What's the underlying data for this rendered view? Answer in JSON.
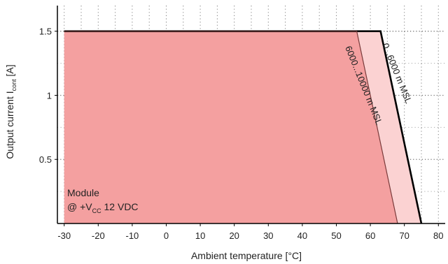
{
  "chart_data": {
    "type": "area",
    "xlabel": "Ambient temperature [°C]",
    "ylabel_main": "Output current I",
    "ylabel_sub": "cont",
    "ylabel_unit": " [A]",
    "xlim": [
      -32,
      82
    ],
    "ylim": [
      0,
      1.7
    ],
    "xticks": [
      -30,
      -20,
      -10,
      0,
      10,
      20,
      30,
      40,
      50,
      60,
      70,
      80
    ],
    "yticks": [
      0.5,
      1,
      1.5
    ],
    "ytick_labels": [
      "0.5",
      "1",
      "1.5"
    ],
    "grid": true,
    "series": [
      {
        "name": "0...6000 m MSL",
        "x": [
          -30,
          63,
          75
        ],
        "y": [
          1.5,
          1.5,
          0
        ],
        "fill": "#fbd2d2",
        "line": "#000000"
      },
      {
        "name": "6000...10000 m MSL",
        "x": [
          -30,
          56,
          68
        ],
        "y": [
          1.5,
          1.5,
          0
        ],
        "fill": "#f4a0a0",
        "line": "#7a3b3b"
      }
    ],
    "annotation": {
      "line1": "Module",
      "line2_prefix": "@ +V",
      "line2_sub": "CC",
      "line2_suffix": " 12 VDC"
    }
  }
}
